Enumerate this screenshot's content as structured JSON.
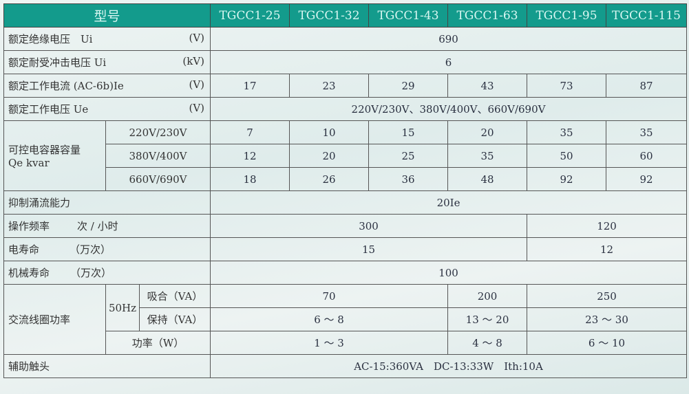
{
  "header": {
    "title": "型号",
    "models": [
      "TGCC1-25",
      "TGCC1-32",
      "TGCC1-43",
      "TGCC1-63",
      "TGCC1-95",
      "TGCC1-115"
    ]
  },
  "rows": {
    "ui": {
      "label": "额定绝缘电压　Ui",
      "unit": "(V)",
      "value": "690"
    },
    "uimp": {
      "label": "额定耐受冲击电压 Ui",
      "unit": "(kV)",
      "value": "6"
    },
    "ie": {
      "label": "额定工作电流 (AC-6b)Ie",
      "unit": "(V)",
      "values": [
        "17",
        "23",
        "29",
        "43",
        "73",
        "87"
      ]
    },
    "ue": {
      "label": "额定工作电压 Ue",
      "unit": "(V)",
      "value": "220V/230V、380V/400V、660V/690V"
    },
    "qe": {
      "label": "可控电容器容量",
      "label2": "Qe kvar",
      "rows": [
        {
          "voltage": "220V/230V",
          "values": [
            "7",
            "10",
            "15",
            "20",
            "35",
            "35"
          ]
        },
        {
          "voltage": "380V/400V",
          "values": [
            "12",
            "20",
            "25",
            "35",
            "50",
            "60"
          ]
        },
        {
          "voltage": "660V/690V",
          "values": [
            "18",
            "26",
            "36",
            "48",
            "92",
            "92"
          ]
        }
      ]
    },
    "inrush": {
      "label": "抑制涌流能力",
      "value": "20Ie"
    },
    "freq": {
      "label": "操作频率",
      "unit": "次 / 小时",
      "values": [
        "300",
        "120"
      ]
    },
    "elife": {
      "label": "电寿命",
      "unit": "（万次）",
      "values": [
        "15",
        "12"
      ]
    },
    "mlife": {
      "label": "机械寿命",
      "unit": "（万次）",
      "value": "100"
    },
    "coil": {
      "label": "交流线圈功率",
      "freq": "50Hz",
      "pickup": {
        "label": "吸合（VA）",
        "values": [
          "70",
          "200",
          "250"
        ]
      },
      "hold": {
        "label": "保持（VA）",
        "values": [
          "6 ～ 8",
          "13 ～ 20",
          "23 ～ 30"
        ]
      },
      "power": {
        "label": "功率（W）",
        "values": [
          "1 ～ 3",
          "4 ～ 8",
          "6 ～ 10"
        ]
      }
    },
    "aux": {
      "label": "辅助触头",
      "value": "AC-15:360VA　DC-13:33W　Ith:10A"
    }
  }
}
